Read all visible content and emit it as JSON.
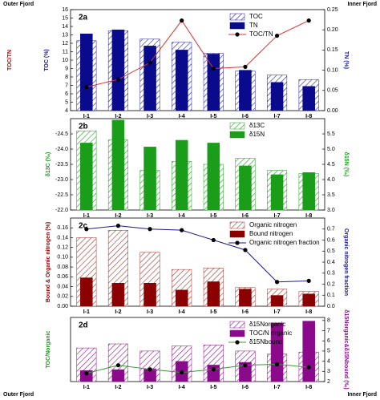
{
  "labels": [
    "Outer Fjord",
    "Inner Fjord",
    "Outer Fjord",
    "Inner Fjord"
  ],
  "chart_data": [
    {
      "type": "bar",
      "title": "2a",
      "categories": [
        "I-1",
        "I-2",
        "I-3",
        "I-4",
        "I-5",
        "I-6",
        "I-7",
        "I-8"
      ],
      "ylabel": "TOC (%)",
      "ylabel_color": "#1a1a9c",
      "ylabel_extra": "TOC/TN",
      "ylabel_extra_color": "#cc0000",
      "y2label": "TN (%)",
      "y2label_color": "#1a1a9c",
      "legend": "upper right",
      "ylim": [
        4,
        16
      ],
      "yticks": [
        4,
        5,
        6,
        7,
        8,
        9,
        10,
        11,
        12,
        13,
        14,
        15,
        16
      ],
      "y2lim": [
        0,
        0.25
      ],
      "y2ticks": [
        {
          "value": 0,
          "label": "0.00"
        },
        {
          "value": 0.05,
          "label": "0.05"
        },
        {
          "value": 0.1,
          "label": "0.10"
        },
        {
          "value": 0.15,
          "label": "0.15"
        },
        {
          "value": 0.2,
          "label": "0.20"
        },
        {
          "value": 0.25,
          "label": "0.25"
        }
      ],
      "y3lim": [
        0,
        2.5
      ],
      "series": [
        {
          "name": "TOC",
          "type": "bar",
          "style": "hatched",
          "axis": "y3",
          "color": "#1a1a9c",
          "values": [
            1.73,
            1.98,
            1.77,
            1.69,
            1.42,
            0.98,
            0.88,
            0.77
          ]
        },
        {
          "name": "TN",
          "type": "bar",
          "style": "solid",
          "axis": "y2",
          "color": "#0a0a8c",
          "values": [
            0.19,
            0.2,
            0.16,
            0.15,
            0.14,
            0.1,
            0.07,
            0.06
          ]
        },
        {
          "name": "TOC/TN",
          "type": "line",
          "axis": "y",
          "color": "#e03030",
          "marker_color": "#000000",
          "values": [
            6.8,
            7.7,
            9.7,
            14.7,
            9.0,
            9.2,
            12.9,
            14.7
          ]
        }
      ]
    },
    {
      "type": "bar",
      "title": "2b",
      "categories": [
        "I-1",
        "I-2",
        "I-3",
        "I-4",
        "I-5",
        "I-6",
        "I-7",
        "I-8"
      ],
      "ylabel": "δ13C (‰)",
      "ylabel_color": "#1a9e1a",
      "y2label": "δ15N (‰)",
      "y2label_color": "#1a9e1a",
      "legend": "upper right",
      "ylim": [
        -22,
        -25
      ],
      "yticks": [
        {
          "value": -24.5,
          "label": "-24.5"
        },
        {
          "value": -24,
          "label": "-24.0"
        },
        {
          "value": -23.5,
          "label": "-23.5"
        },
        {
          "value": -23,
          "label": "-23.0"
        },
        {
          "value": -22.5,
          "label": "-22.5"
        },
        {
          "value": -22,
          "label": "-22.0"
        }
      ],
      "y2lim": [
        3,
        6
      ],
      "y2ticks": [
        {
          "value": 3,
          "label": "3.0"
        },
        3.5,
        {
          "value": 4,
          "label": "4.0"
        },
        4.5,
        {
          "value": 5,
          "label": "5.0"
        },
        5.5
      ],
      "series": [
        {
          "name": "δ13C",
          "type": "bar",
          "style": "hatched",
          "axis": "y",
          "color": "#1a9e1a",
          "values": [
            -24.6,
            -24.3,
            -23.3,
            -23.6,
            -23.5,
            -23.7,
            -23.3,
            -23.2
          ]
        },
        {
          "name": "δ15N",
          "type": "bar",
          "style": "solid",
          "axis": "y2",
          "color": "#1a9e1a",
          "values": [
            5.2,
            5.95,
            5.07,
            5.29,
            5.2,
            4.45,
            4.16,
            4.23
          ]
        }
      ]
    },
    {
      "type": "bar",
      "title": "2c",
      "categories": [
        "I-1",
        "I-2",
        "I-3",
        "I-4",
        "I-5",
        "I-6",
        "I-7",
        "I-8"
      ],
      "ylabel": "Bound & Organic nitrogen (%)",
      "ylabel_color": "#8b0000",
      "y2label": "Organic nitrogen fraction",
      "y2label_color": "#1a1a8c",
      "legend": "upper right",
      "ylim": [
        0,
        0.18
      ],
      "yticks": [
        {
          "value": 0,
          "label": "0.00"
        },
        0.02,
        0.04,
        0.06,
        0.08,
        {
          "value": 0.1,
          "label": "0.10"
        },
        0.12,
        0.14,
        0.16
      ],
      "y2lim": [
        0,
        0.8
      ],
      "y2ticks": [
        {
          "value": 0,
          "label": "0.0"
        },
        0.1,
        0.2,
        0.3,
        0.4,
        0.5,
        0.6,
        0.7
      ],
      "series": [
        {
          "name": "Organic nitrogen",
          "type": "bar",
          "style": "hatched",
          "axis": "y",
          "color": "#a0302a",
          "values": [
            0.14,
            0.155,
            0.11,
            0.075,
            0.078,
            0.038,
            0.035,
            0.03
          ]
        },
        {
          "name": "Bound nitrogen",
          "type": "bar",
          "style": "solid",
          "axis": "y",
          "color": "#8b0000",
          "values": [
            0.058,
            0.047,
            0.047,
            0.033,
            0.05,
            0.035,
            0.022,
            0.025
          ]
        },
        {
          "name": "Organic nitrogen fraction",
          "type": "line",
          "axis": "y2",
          "color": "#1a1a8c",
          "marker_color": "#000000",
          "values": [
            0.7,
            0.73,
            0.7,
            0.69,
            0.6,
            0.51,
            0.22,
            0.23
          ]
        }
      ]
    },
    {
      "type": "bar",
      "title": "2d",
      "categories": [
        "I-1",
        "I-2",
        "I-3",
        "I-4",
        "I-5",
        "I-6",
        "I-7",
        "I-8"
      ],
      "ylabel": "TOC/Norganic",
      "ylabel_color": "#1a9e1a",
      "y2label": "δ15Norganic&δ15Nbound (‰)",
      "y2label_color": "#8b0a8b",
      "legend": "upper right",
      "ylim": [
        0,
        70
      ],
      "y2lim": [
        2,
        8.3
      ],
      "y2ticks": [
        2,
        3,
        4,
        5,
        6,
        7,
        8
      ],
      "series": [
        {
          "name": "δ15Norganic",
          "type": "bar",
          "style": "hatched",
          "axis": "y2",
          "color": "#8b0a8b",
          "values": [
            5.3,
            5.7,
            5.0,
            5.5,
            5.6,
            5.0,
            4.7,
            4.9
          ]
        },
        {
          "name": "TOC/N organic",
          "type": "bar",
          "style": "solid",
          "axis": "y",
          "color": "#8b0a8b",
          "values": [
            12,
            13,
            14,
            22,
            18,
            21,
            64,
            66
          ]
        },
        {
          "name": "δ15Nbound",
          "type": "line",
          "axis": "y2",
          "color": "#3a9a3a",
          "marker_color": "#000000",
          "values": [
            2.8,
            3.6,
            3.2,
            2.9,
            3.2,
            3.6,
            3.7,
            3.4
          ]
        }
      ]
    }
  ]
}
